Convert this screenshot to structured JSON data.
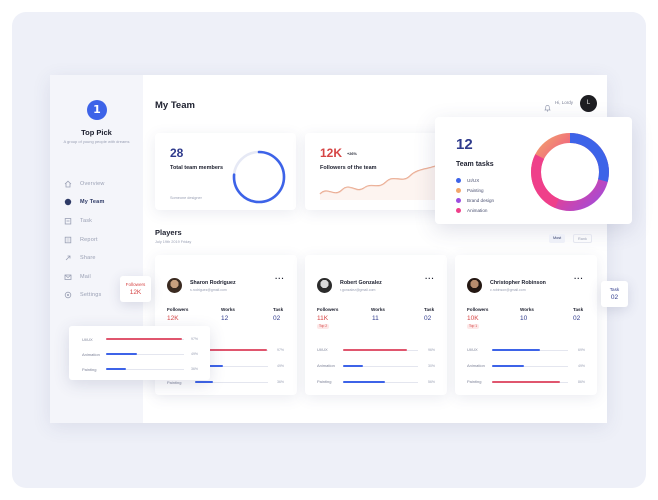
{
  "app": {
    "brand": "Top Pick",
    "tagline": "A group of young people with dreams"
  },
  "sidebar": {
    "items": [
      {
        "label": "Overview",
        "icon": "home-icon"
      },
      {
        "label": "My Team",
        "icon": "team-icon",
        "active": true
      },
      {
        "label": "Task",
        "icon": "task-icon"
      },
      {
        "label": "Report",
        "icon": "report-icon"
      },
      {
        "label": "Share",
        "icon": "share-icon"
      },
      {
        "label": "Mail",
        "icon": "mail-icon"
      },
      {
        "label": "Settings",
        "icon": "settings-icon"
      }
    ]
  },
  "header": {
    "title": "My Team",
    "greeting": "Hi, Lordy",
    "avatar_initial": "L"
  },
  "stats": {
    "members_count": "28",
    "members_label": "Total team members",
    "members_foot": "Someone designer",
    "followers_count": "12K",
    "followers_delta": "+26%",
    "followers_label": "Followers of the team"
  },
  "team_tasks": {
    "count": "12",
    "label": "Team tasks",
    "legend": [
      {
        "label": "UI/UX",
        "color": "#3d63e8"
      },
      {
        "label": "Painting",
        "color": "#f2a56b"
      },
      {
        "label": "Brand design",
        "color": "#9b4de0"
      },
      {
        "label": "Animation",
        "color": "#ef3f8a"
      }
    ]
  },
  "players": {
    "title": "Players",
    "subtitle": "July 19th 2019 Friday",
    "toggle_active": "Most",
    "toggle_inactive": "Rank",
    "headers": {
      "followers": "Followers",
      "works": "Works",
      "task": "Task"
    },
    "cards": [
      {
        "name": "Sharon Rodriguez",
        "email": "s.rodriguez@gmail.com",
        "followers": "12K",
        "works": "12",
        "task": "02",
        "badge": "",
        "skills": [
          {
            "label": "UI/UX",
            "pct": "97%",
            "value": 0.97,
            "color": "#e0566e"
          },
          {
            "label": "Animation",
            "pct": "49%",
            "value": 0.49,
            "color": "#3d63e8"
          },
          {
            "label": "Painting",
            "pct": "36%",
            "value": 0.36,
            "color": "#3d63e8"
          }
        ]
      },
      {
        "name": "Robert Gonzalez",
        "email": "r.gonzalez@gmail.com",
        "followers": "11K",
        "works": "11",
        "task": "02",
        "badge": "Top 2",
        "skills": [
          {
            "label": "UI/UX",
            "pct": "96%",
            "value": 0.96,
            "color": "#e0566e"
          },
          {
            "label": "Animation",
            "pct": "30%",
            "value": 0.3,
            "color": "#3d63e8"
          },
          {
            "label": "Painting",
            "pct": "56%",
            "value": 0.56,
            "color": "#3d63e8"
          }
        ]
      },
      {
        "name": "Christopher Robinson",
        "email": "c.robinson@gmail.com",
        "followers": "10K",
        "works": "10",
        "task": "02",
        "badge": "Top 1",
        "skills": [
          {
            "label": "UI/UX",
            "pct": "69%",
            "value": 0.69,
            "color": "#3d63e8"
          },
          {
            "label": "Animation",
            "pct": "49%",
            "value": 0.49,
            "color": "#3d63e8"
          },
          {
            "label": "Painting",
            "pct": "86%",
            "value": 0.86,
            "color": "#e0566e"
          }
        ]
      }
    ]
  },
  "float": {
    "followers_label": "Followers",
    "followers_value": "12K",
    "task_label": "Task",
    "task_value": "02",
    "skills": [
      {
        "label": "UI/UX",
        "pct": "97%",
        "value": 0.97,
        "color": "#e0566e"
      },
      {
        "label": "Animation",
        "pct": "49%",
        "value": 0.49,
        "color": "#3d63e8"
      },
      {
        "label": "Painting",
        "pct": "36%",
        "value": 0.36,
        "color": "#3d63e8"
      }
    ]
  },
  "colors": {
    "accent": "#3d63e8",
    "danger": "#e0566e",
    "text": "#1c1f2e"
  }
}
